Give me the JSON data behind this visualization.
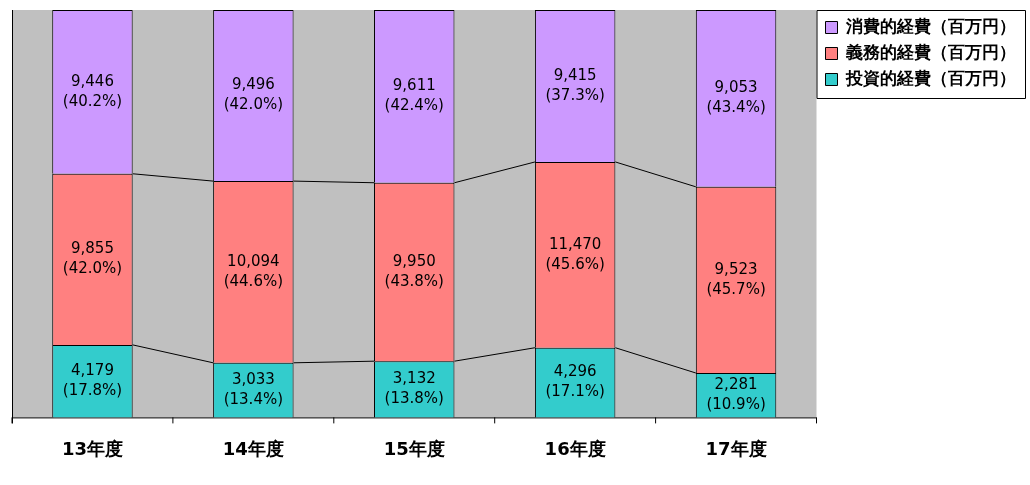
{
  "chart_data": {
    "type": "bar",
    "stacked": true,
    "categories": [
      "13年度",
      "14年度",
      "15年度",
      "16年度",
      "17年度"
    ],
    "series": [
      {
        "name": "投資的経費（百万円）",
        "color": "#33cccc",
        "values": [
          17.8,
          13.4,
          13.8,
          17.1,
          10.9
        ],
        "value_labels": [
          "4,179\n(17.8%)",
          "3,033\n(13.4%)",
          "3,132\n(13.8%)",
          "4,296\n(17.1%)",
          "2,281\n(10.9%)"
        ]
      },
      {
        "name": "義務的経費（百万円）",
        "color": "#ff8080",
        "values": [
          42.0,
          44.6,
          43.8,
          45.6,
          45.7
        ],
        "value_labels": [
          "9,855\n(42.0%)",
          "10,094\n(44.6%)",
          "9,950\n(43.8%)",
          "11,470\n(45.6%)",
          "9,523\n(45.7%)"
        ]
      },
      {
        "name": "消費的経費（百万円）",
        "color": "#cc99ff",
        "values": [
          40.2,
          42.0,
          42.4,
          37.3,
          43.4
        ],
        "value_labels": [
          "9,446\n(40.2%)",
          "9,496\n(42.0%)",
          "9,611\n(42.4%)",
          "9,415\n(37.3%)",
          "9,053\n(43.4%)"
        ]
      }
    ],
    "legend": "right",
    "grid": false
  }
}
